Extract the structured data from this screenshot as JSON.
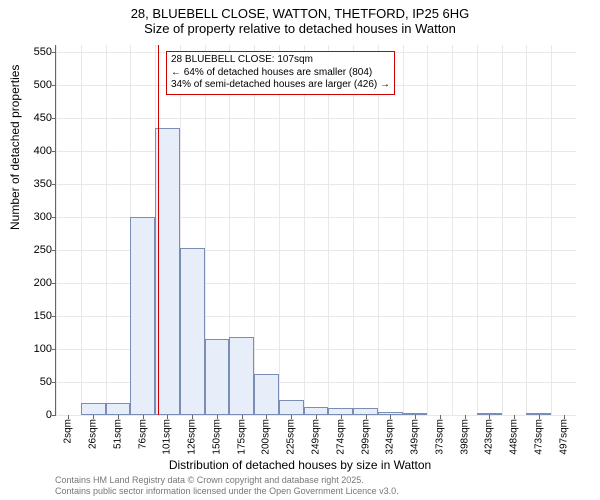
{
  "title": {
    "line1": "28, BLUEBELL CLOSE, WATTON, THETFORD, IP25 6HG",
    "line2": "Size of property relative to detached houses in Watton"
  },
  "chart": {
    "type": "histogram",
    "ylabel": "Number of detached properties",
    "xlabel": "Distribution of detached houses by size in Watton",
    "ylim": [
      0,
      560
    ],
    "yticks": [
      0,
      50,
      100,
      150,
      200,
      250,
      300,
      350,
      400,
      450,
      500,
      550
    ],
    "xticks": [
      "2sqm",
      "26sqm",
      "51sqm",
      "76sqm",
      "101sqm",
      "126sqm",
      "150sqm",
      "175sqm",
      "200sqm",
      "225sqm",
      "249sqm",
      "274sqm",
      "299sqm",
      "324sqm",
      "349sqm",
      "373sqm",
      "398sqm",
      "423sqm",
      "448sqm",
      "473sqm",
      "497sqm"
    ],
    "bars": {
      "count": 21,
      "values": [
        0,
        18,
        18,
        300,
        435,
        253,
        115,
        118,
        62,
        22,
        12,
        10,
        10,
        4,
        3,
        0,
        0,
        2,
        0,
        3,
        0
      ],
      "fill_color": "#e8eef9",
      "border_color": "#7a8db5"
    },
    "marker": {
      "bin_index": 4,
      "color": "#cc0000"
    },
    "annotation": {
      "lines": [
        "28 BLUEBELL CLOSE: 107sqm",
        "← 64% of detached houses are smaller (804)",
        "34% of semi-detached houses are larger (426) →"
      ],
      "border_color": "#cc0000",
      "fontsize": 10
    },
    "background_color": "#ffffff",
    "grid_color": "#e8e8e8",
    "axis_color": "#666666",
    "tick_fontsize": 11,
    "label_fontsize": 12,
    "title_fontsize": 13
  },
  "footer": {
    "line1": "Contains HM Land Registry data © Crown copyright and database right 2025.",
    "line2": "Contains public sector information licensed under the Open Government Licence v3.0."
  }
}
